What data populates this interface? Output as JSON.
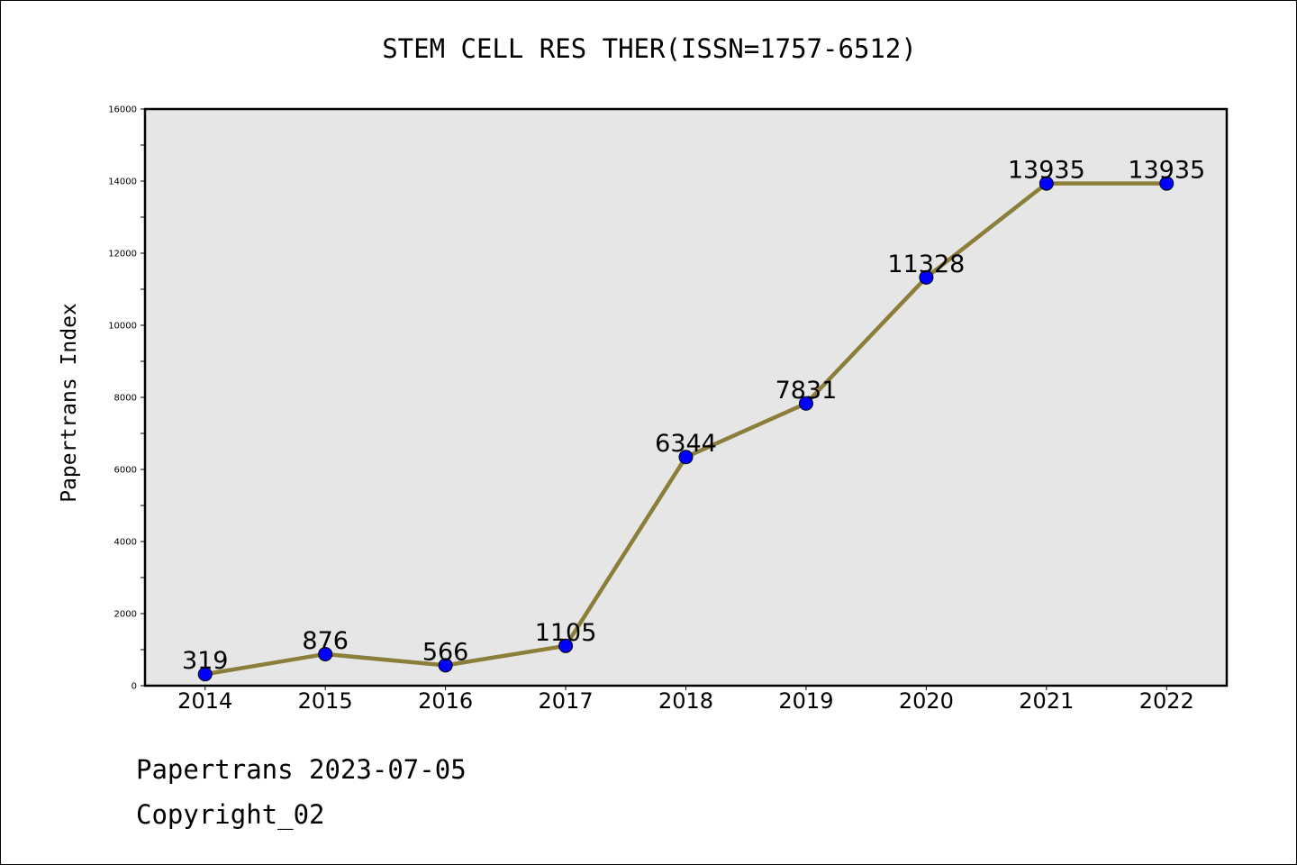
{
  "chart_data": {
    "type": "line",
    "title": "STEM CELL RES THER(ISSN=1757-6512)",
    "xlabel": "",
    "ylabel": "Papertrans Index",
    "categories": [
      "2014",
      "2015",
      "2016",
      "2017",
      "2018",
      "2019",
      "2020",
      "2021",
      "2022"
    ],
    "values": [
      319,
      876,
      566,
      1105,
      6344,
      7831,
      11328,
      13935,
      13935
    ],
    "ylim": [
      0,
      16000
    ],
    "yticks": [
      0,
      2000,
      4000,
      6000,
      8000,
      10000,
      12000,
      14000,
      16000
    ],
    "grid": false,
    "data_labels": true,
    "colors": {
      "line": "#8B7D3A",
      "marker": "#0000FF",
      "plot_background": "#E6E6E6"
    }
  },
  "footer": {
    "line1": "Papertrans 2023-07-05",
    "line2": "Copyright_02"
  }
}
